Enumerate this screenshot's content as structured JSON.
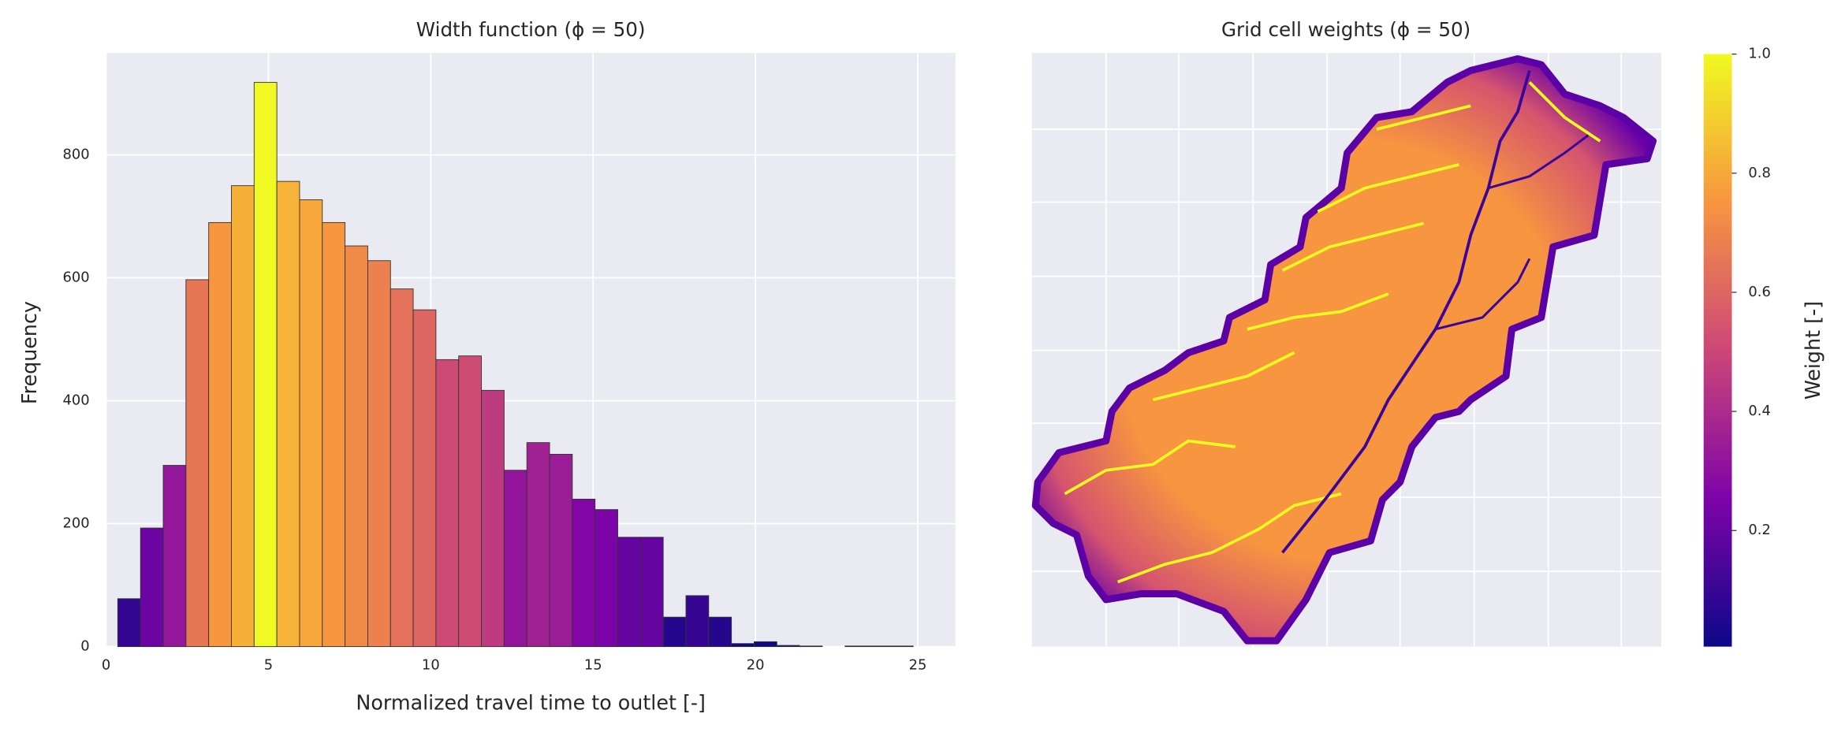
{
  "chart_data": [
    {
      "type": "histogram",
      "title": "Width function (ϕ = 50)",
      "x_label": "Normalized travel time to outlet [-]",
      "y_label": "Frequency",
      "bins": [
        0.36,
        1.06,
        1.76,
        2.46,
        3.16,
        3.86,
        4.56,
        5.26,
        5.96,
        6.66,
        7.36,
        8.06,
        8.76,
        9.46,
        10.16,
        10.86,
        11.56,
        12.26,
        12.96,
        13.66,
        14.36,
        15.06,
        15.76,
        16.46,
        17.16,
        17.86,
        18.56,
        19.26,
        19.96,
        20.66,
        21.36,
        22.06,
        22.76,
        23.46,
        24.16,
        24.86
      ],
      "values": [
        78,
        193,
        295,
        597,
        690,
        750,
        918,
        757,
        727,
        690,
        652,
        628,
        582,
        548,
        467,
        473,
        417,
        287,
        332,
        313,
        240,
        223,
        178,
        178,
        48,
        83,
        48,
        5,
        8,
        2,
        1,
        0,
        1,
        1,
        1
      ],
      "colormap": "plasma",
      "xlim": [
        0,
        26.16
      ],
      "ylim": [
        0,
        966
      ],
      "xticks": [
        0,
        5,
        10,
        15,
        20,
        25
      ],
      "yticks": [
        0,
        200,
        400,
        600,
        800
      ],
      "grid": true
    },
    {
      "type": "image",
      "title": "Grid cell weights (ϕ = 50)",
      "colorbar_label": "Weight [-]",
      "colormap": "plasma",
      "clim": [
        0.005,
        1
      ],
      "cticks": [
        0.2,
        0.4,
        0.6,
        0.8,
        {
          "value": 1,
          "label": "1.0"
        }
      ],
      "grid": true
    }
  ]
}
